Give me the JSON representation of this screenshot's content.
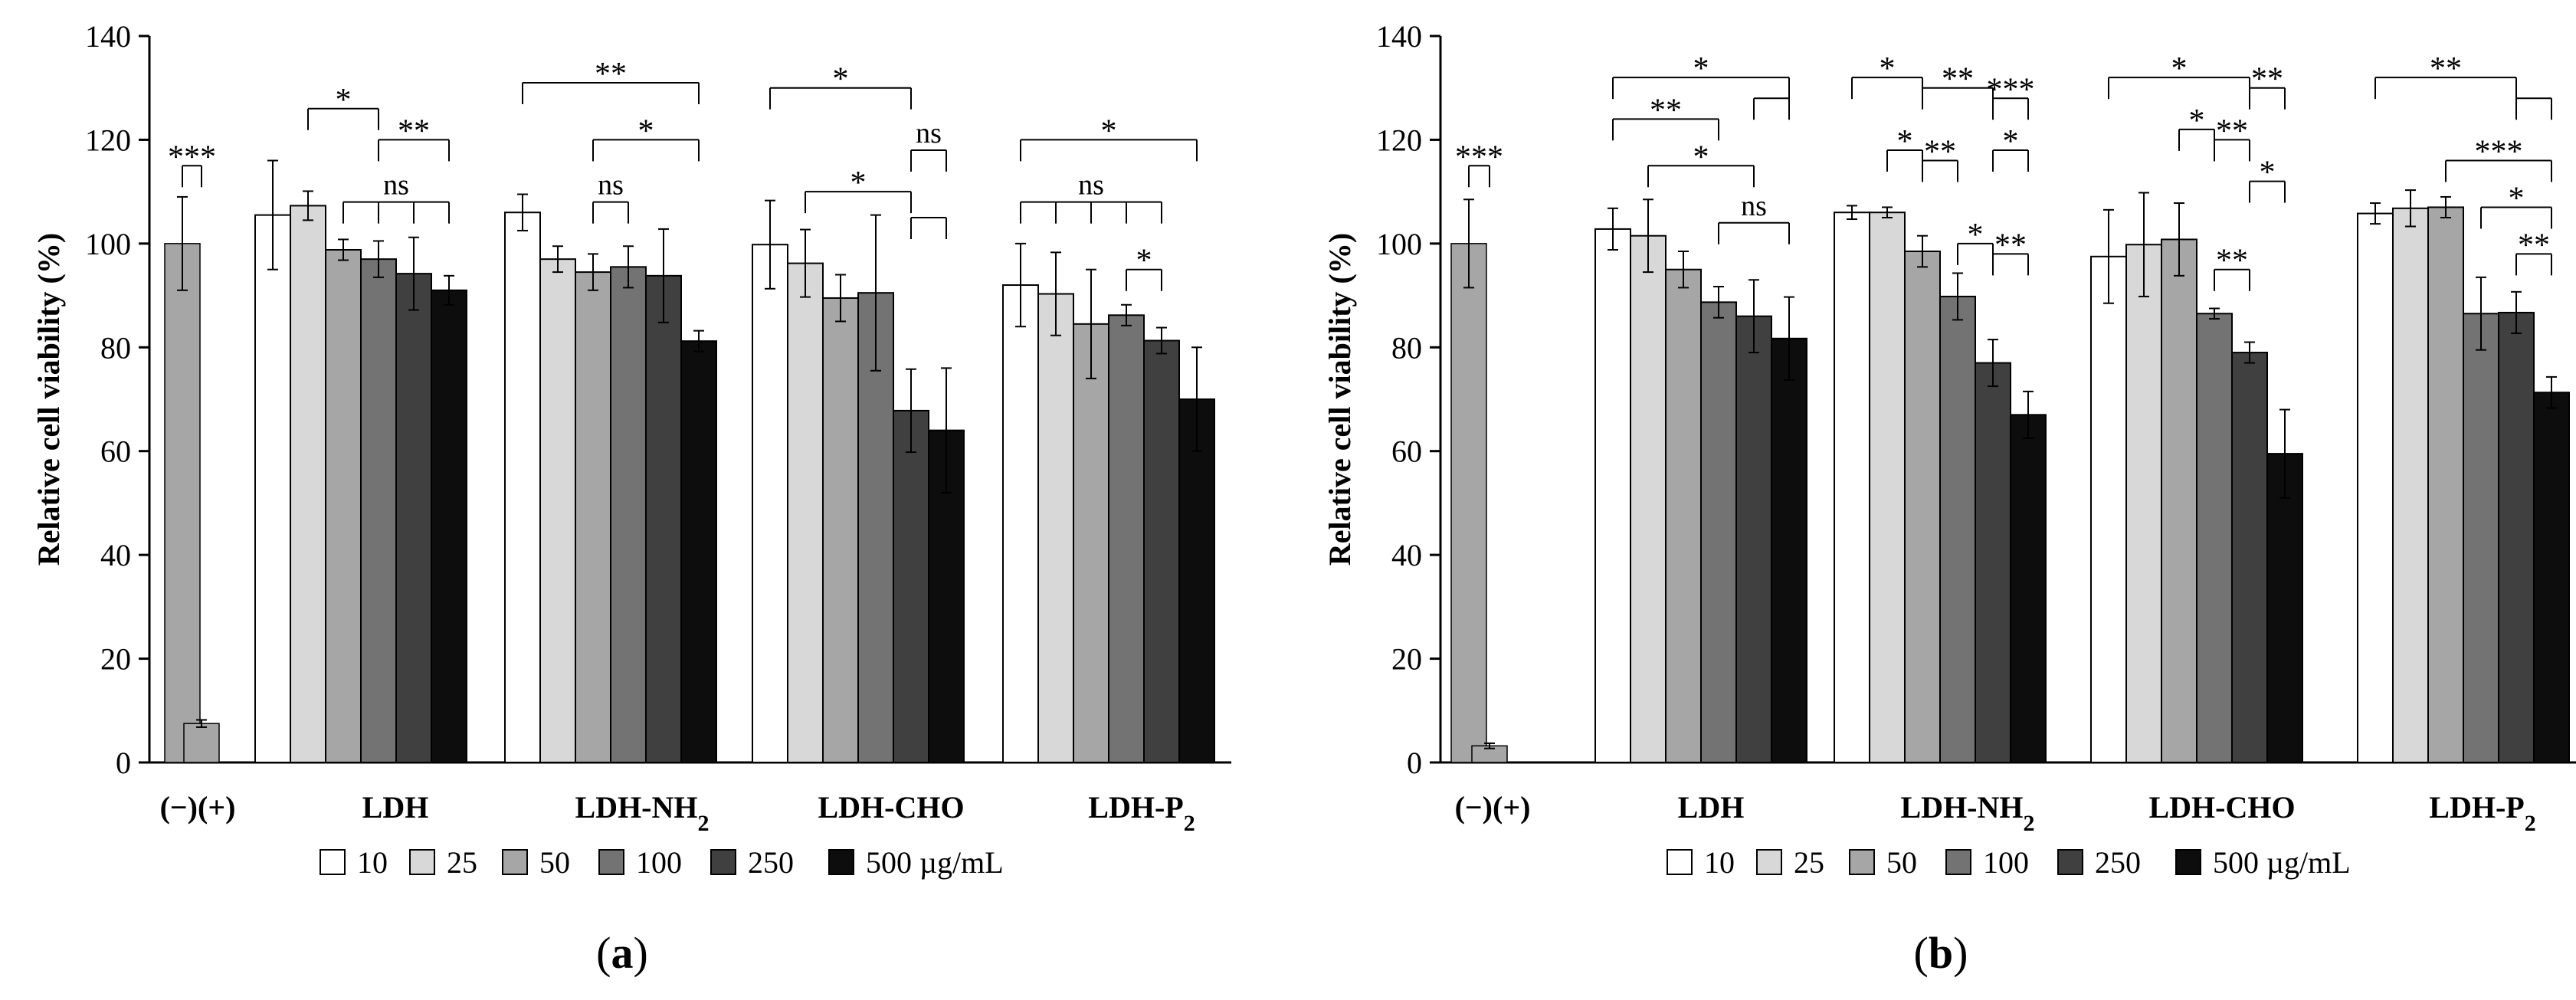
{
  "chart_data": [
    {
      "panel_label": "a",
      "type": "bar",
      "ylabel": "Relative cell viability (%)",
      "ylim": [
        0,
        140
      ],
      "yticks": [
        0,
        20,
        40,
        60,
        80,
        100,
        120,
        140
      ],
      "groups": [
        {
          "label": "(−)(+)",
          "controls": true,
          "bars": [
            {
              "value": 100,
              "err": 9,
              "color": "#a6a6a6"
            },
            {
              "value": 7.5,
              "err": 0.7,
              "color": "#a6a6a6"
            }
          ]
        },
        {
          "label": "LDH",
          "values": [
            105.5,
            107.3,
            98.8,
            97.0,
            94.2,
            91.0
          ],
          "errors": [
            10.5,
            2.8,
            2.0,
            3.5,
            7.0,
            2.8
          ]
        },
        {
          "label": "LDH-NH",
          "sub": "2",
          "values": [
            106.0,
            97.0,
            94.5,
            95.5,
            93.8,
            81.2
          ],
          "errors": [
            3.5,
            2.5,
            3.5,
            4.0,
            9.0,
            2.0
          ]
        },
        {
          "label": "LDH-CHO",
          "values": [
            99.8,
            96.2,
            89.5,
            90.5,
            67.8,
            64.0
          ],
          "errors": [
            8.5,
            6.5,
            4.5,
            15.0,
            8.0,
            12.0
          ]
        },
        {
          "label": "LDH-P",
          "sub": "2",
          "values": [
            92.0,
            90.3,
            84.5,
            86.2,
            81.3,
            70.0
          ],
          "errors": [
            8.0,
            8.0,
            10.5,
            2.0,
            2.5,
            10.0
          ]
        }
      ],
      "series": [
        "10",
        "25",
        "50",
        "100",
        "250",
        "500 µg/mL"
      ],
      "series_colors": [
        "#ffffff",
        "#d8d8d8",
        "#a6a6a6",
        "#737373",
        "#404040",
        "#0d0d0d"
      ],
      "annotations": [
        {
          "text": "***",
          "y": 115,
          "from": [
            0,
            0
          ],
          "to": [
            0,
            1
          ]
        },
        {
          "text": "*",
          "y": 126,
          "from": [
            1,
            1
          ],
          "to": [
            1,
            3
          ]
        },
        {
          "text": "**",
          "y": 120,
          "from": [
            1,
            3
          ],
          "to": [
            1,
            5
          ]
        },
        {
          "text": "ns",
          "y": 108,
          "from": [
            1,
            2
          ],
          "to": [
            1,
            5
          ],
          "ticks": [
            [
              1,
              2
            ],
            [
              1,
              3
            ],
            [
              1,
              4
            ],
            [
              1,
              5
            ]
          ]
        },
        {
          "text": "**",
          "y": 131,
          "from": [
            2,
            0
          ],
          "to": [
            2,
            5
          ]
        },
        {
          "text": "*",
          "y": 120,
          "from": [
            2,
            2
          ],
          "to": [
            2,
            5
          ]
        },
        {
          "text": "ns",
          "y": 108,
          "from": [
            2,
            2
          ],
          "to": [
            2,
            3
          ]
        },
        {
          "text": "*",
          "y": 130,
          "from": [
            3,
            0
          ],
          "to": [
            3,
            4
          ]
        },
        {
          "text": "ns",
          "y": 118,
          "from": [
            3,
            4
          ],
          "to": [
            3,
            5
          ]
        },
        {
          "text": "*",
          "y": 110,
          "from": [
            3,
            1
          ],
          "to": [
            3,
            4
          ]
        },
        {
          "text": "",
          "y": 105,
          "from": [
            3,
            4
          ],
          "to": [
            3,
            5
          ]
        },
        {
          "text": "*",
          "y": 120,
          "from": [
            4,
            0
          ],
          "to": [
            4,
            5
          ]
        },
        {
          "text": "ns",
          "y": 108,
          "from": [
            4,
            0
          ],
          "to": [
            4,
            4
          ],
          "ticks": [
            [
              4,
              0
            ],
            [
              4,
              1
            ],
            [
              4,
              2
            ],
            [
              4,
              3
            ],
            [
              4,
              4
            ]
          ]
        },
        {
          "text": "*",
          "y": 95,
          "from": [
            4,
            3
          ],
          "to": [
            4,
            4
          ]
        }
      ]
    },
    {
      "panel_label": "b",
      "type": "bar",
      "ylabel": "Relative cell viability (%)",
      "ylim": [
        0,
        140
      ],
      "yticks": [
        0,
        20,
        40,
        60,
        80,
        100,
        120,
        140
      ],
      "groups": [
        {
          "label": "(−)(+)",
          "controls": true,
          "bars": [
            {
              "value": 100,
              "err": 8.5,
              "color": "#a6a6a6"
            },
            {
              "value": 3.2,
              "err": 0.5,
              "color": "#a6a6a6"
            }
          ]
        },
        {
          "label": "LDH",
          "values": [
            102.8,
            101.5,
            95.0,
            88.7,
            86.0,
            81.7
          ],
          "errors": [
            4.0,
            7.0,
            3.5,
            3.0,
            7.0,
            8.0
          ]
        },
        {
          "label": "LDH-NH",
          "sub": "2",
          "values": [
            106.0,
            106.0,
            98.5,
            89.8,
            77.0,
            67.0
          ],
          "errors": [
            1.3,
            1.0,
            3.0,
            4.5,
            4.5,
            4.5
          ]
        },
        {
          "label": "LDH-CHO",
          "values": [
            97.5,
            99.8,
            100.8,
            86.5,
            79.0,
            59.5
          ],
          "errors": [
            9.0,
            10.0,
            7.0,
            1.0,
            2.0,
            8.5
          ]
        },
        {
          "label": "LDH-P",
          "sub": "2",
          "values": [
            105.8,
            106.8,
            107.0,
            86.5,
            86.7,
            71.3
          ],
          "errors": [
            2.0,
            3.5,
            2.0,
            7.0,
            4.0,
            3.0
          ]
        }
      ],
      "series": [
        "10",
        "25",
        "50",
        "100",
        "250",
        "500 µg/mL"
      ],
      "series_colors": [
        "#ffffff",
        "#d8d8d8",
        "#a6a6a6",
        "#737373",
        "#404040",
        "#0d0d0d"
      ],
      "annotations": [
        {
          "text": "***",
          "y": 115,
          "from": [
            0,
            0
          ],
          "to": [
            0,
            1
          ]
        },
        {
          "text": "*",
          "y": 132,
          "from": [
            1,
            0
          ],
          "to": [
            1,
            5
          ]
        },
        {
          "text": "",
          "y": 128,
          "from": [
            1,
            4
          ],
          "to": [
            1,
            5
          ]
        },
        {
          "text": "**",
          "y": 124,
          "from": [
            1,
            0
          ],
          "to": [
            1,
            3
          ]
        },
        {
          "text": "*",
          "y": 115,
          "from": [
            1,
            1
          ],
          "to": [
            1,
            4
          ]
        },
        {
          "text": "ns",
          "y": 104,
          "from": [
            1,
            3
          ],
          "to": [
            1,
            5
          ]
        },
        {
          "text": "*",
          "y": 132,
          "from": [
            2,
            0
          ],
          "to": [
            2,
            2
          ]
        },
        {
          "text": "**",
          "y": 130,
          "from": [
            2,
            2
          ],
          "to": [
            2,
            4
          ]
        },
        {
          "text": "***",
          "y": 128,
          "from": [
            2,
            4
          ],
          "to": [
            2,
            5
          ]
        },
        {
          "text": "*",
          "y": 118,
          "from": [
            2,
            1
          ],
          "to": [
            2,
            2
          ]
        },
        {
          "text": "**",
          "y": 116,
          "from": [
            2,
            2
          ],
          "to": [
            2,
            3
          ]
        },
        {
          "text": "*",
          "y": 118,
          "from": [
            2,
            4
          ],
          "to": [
            2,
            5
          ]
        },
        {
          "text": "*",
          "y": 100,
          "from": [
            2,
            3
          ],
          "to": [
            2,
            4
          ]
        },
        {
          "text": "**",
          "y": 98,
          "from": [
            2,
            4
          ],
          "to": [
            2,
            5
          ]
        },
        {
          "text": "*",
          "y": 132,
          "from": [
            3,
            0
          ],
          "to": [
            3,
            4
          ]
        },
        {
          "text": "**",
          "y": 130,
          "from": [
            3,
            4
          ],
          "to": [
            3,
            5
          ]
        },
        {
          "text": "*",
          "y": 122,
          "from": [
            3,
            2
          ],
          "to": [
            3,
            3
          ]
        },
        {
          "text": "**",
          "y": 120,
          "from": [
            3,
            3
          ],
          "to": [
            3,
            4
          ]
        },
        {
          "text": "*",
          "y": 112,
          "from": [
            3,
            4
          ],
          "to": [
            3,
            5
          ]
        },
        {
          "text": "**",
          "y": 95,
          "from": [
            3,
            3
          ],
          "to": [
            3,
            4
          ]
        },
        {
          "text": "**",
          "y": 132,
          "from": [
            4,
            0
          ],
          "to": [
            4,
            4
          ]
        },
        {
          "text": "",
          "y": 128,
          "from": [
            4,
            4
          ],
          "to": [
            4,
            5
          ]
        },
        {
          "text": "***",
          "y": 116,
          "from": [
            4,
            2
          ],
          "to": [
            4,
            5
          ]
        },
        {
          "text": "*",
          "y": 107,
          "from": [
            4,
            3
          ],
          "to": [
            4,
            5
          ]
        },
        {
          "text": "**",
          "y": 98,
          "from": [
            4,
            4
          ],
          "to": [
            4,
            5
          ]
        }
      ]
    }
  ]
}
